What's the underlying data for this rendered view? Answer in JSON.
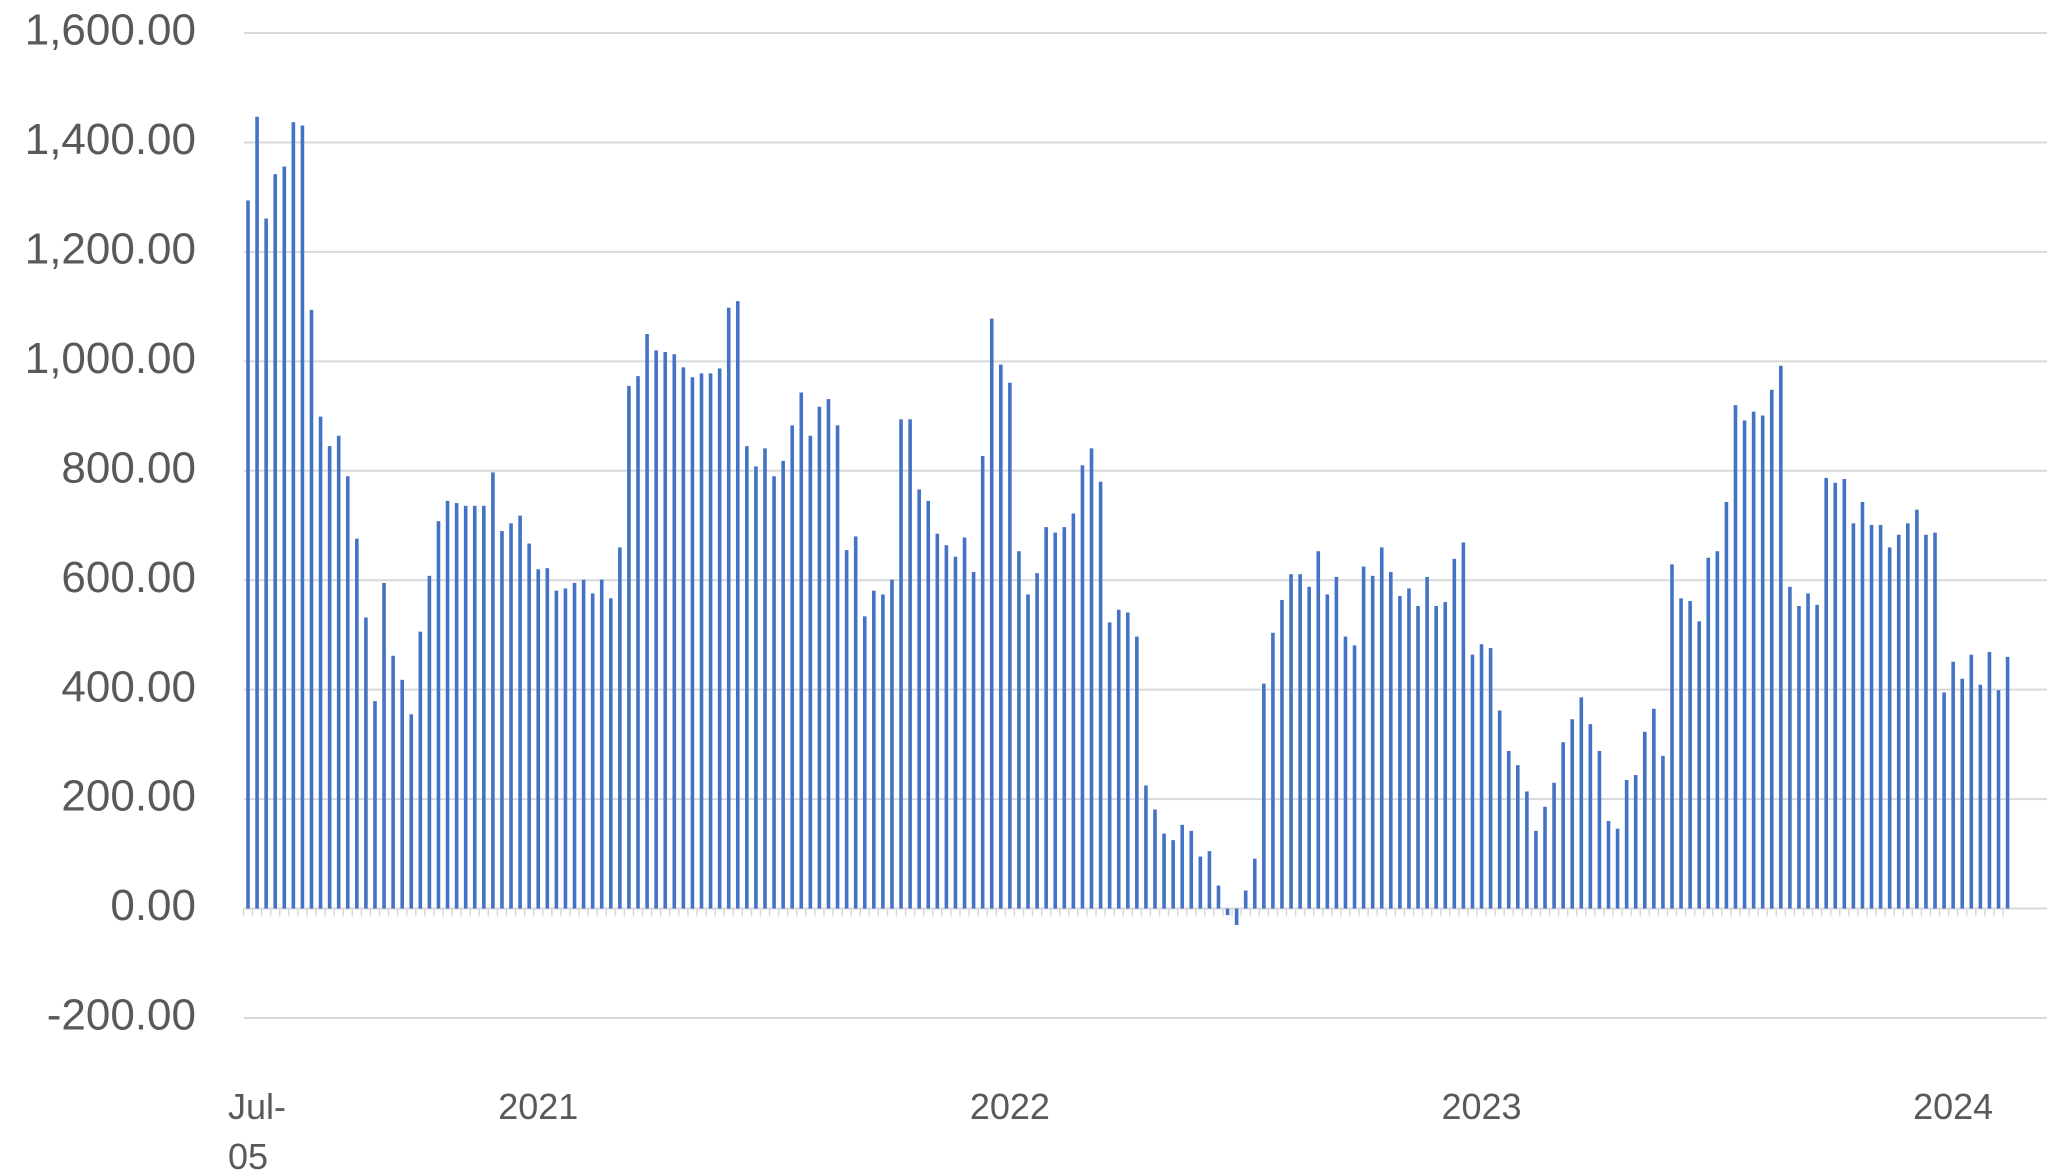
{
  "chart_data": {
    "type": "bar",
    "color": "#4472c4",
    "grid": true,
    "ylim": [
      -200,
      1600
    ],
    "yticks": [
      {
        "value": -200,
        "label": "-200.00"
      },
      {
        "value": 0,
        "label": "0.00"
      },
      {
        "value": 200,
        "label": "200.00"
      },
      {
        "value": 400,
        "label": "400.00"
      },
      {
        "value": 600,
        "label": "600.00"
      },
      {
        "value": 800,
        "label": "800.00"
      },
      {
        "value": 1000,
        "label": "1,000.00"
      },
      {
        "value": 1200,
        "label": "1,200.00"
      },
      {
        "value": 1400,
        "label": "1,400.00"
      },
      {
        "value": 1600,
        "label": "1,600.00"
      }
    ],
    "categories": [
      "Jul-05",
      null,
      null,
      null,
      null,
      null,
      null,
      null,
      null,
      null,
      null,
      null,
      null,
      null,
      null,
      null,
      null,
      null,
      null,
      null,
      null,
      null,
      null,
      null,
      null,
      null,
      null,
      null,
      null,
      null,
      null,
      null,
      "2021",
      null,
      null,
      null,
      null,
      null,
      null,
      null,
      null,
      null,
      null,
      null,
      null,
      null,
      null,
      null,
      null,
      null,
      null,
      null,
      null,
      null,
      null,
      null,
      null,
      null,
      null,
      null,
      null,
      null,
      null,
      null,
      null,
      null,
      null,
      null,
      null,
      null,
      null,
      null,
      null,
      null,
      null,
      null,
      null,
      null,
      null,
      null,
      null,
      null,
      null,
      null,
      "2022",
      null,
      null,
      null,
      null,
      null,
      null,
      null,
      null,
      null,
      null,
      null,
      null,
      null,
      null,
      null,
      null,
      null,
      null,
      null,
      null,
      null,
      null,
      null,
      null,
      null,
      null,
      null,
      null,
      null,
      null,
      null,
      null,
      null,
      null,
      null,
      null,
      null,
      null,
      null,
      null,
      null,
      null,
      null,
      null,
      null,
      null,
      null,
      null,
      null,
      null,
      null,
      "2023",
      null,
      null,
      null,
      null,
      null,
      null,
      null,
      null,
      null,
      null,
      null,
      null,
      null,
      null,
      null,
      null,
      null,
      null,
      null,
      null,
      null,
      null,
      null,
      null,
      null,
      null,
      null,
      null,
      null,
      null,
      null,
      null,
      null,
      null,
      null,
      null,
      null,
      null,
      null,
      null,
      null,
      null,
      null,
      null,
      null,
      null,
      null,
      null,
      null,
      null,
      null,
      "2024",
      null,
      null,
      null,
      null,
      null,
      null
    ],
    "values": [
      1294,
      1447,
      1261,
      1342,
      1356,
      1437,
      1431,
      1094,
      899,
      845,
      864,
      790,
      676,
      532,
      379,
      595,
      462,
      418,
      355,
      506,
      608,
      708,
      745,
      741,
      736,
      736,
      736,
      797,
      690,
      704,
      718,
      667,
      620,
      622,
      581,
      585,
      595,
      601,
      576,
      601,
      567,
      660,
      955,
      973,
      1050,
      1020,
      1017,
      1013,
      989,
      971,
      978,
      978,
      987,
      1098,
      1110,
      845,
      808,
      841,
      790,
      818,
      883,
      943,
      864,
      917,
      931,
      883,
      655,
      680,
      534,
      581,
      574,
      601,
      894,
      894,
      766,
      745,
      685,
      664,
      643,
      678,
      615,
      827,
      1078,
      994,
      961,
      653,
      574,
      613,
      697,
      687,
      697,
      722,
      810,
      841,
      780,
      523,
      546,
      541,
      497,
      225,
      181,
      137,
      125,
      153,
      142,
      95,
      105,
      42,
      -12,
      -30,
      33,
      91,
      411,
      504,
      564,
      611,
      611,
      588,
      653,
      574,
      606,
      497,
      481,
      625,
      608,
      660,
      615,
      571,
      585,
      553,
      606,
      553,
      560,
      639,
      669,
      464,
      483,
      476,
      362,
      288,
      262,
      214,
      142,
      186,
      230,
      304,
      346,
      386,
      337,
      288,
      160,
      146,
      235,
      244,
      323,
      365,
      279,
      629,
      567,
      562,
      525,
      641,
      653,
      743,
      920,
      892,
      908,
      901,
      948,
      992,
      588,
      553,
      576,
      555,
      787,
      778,
      785,
      704,
      743,
      701,
      701,
      660,
      683,
      704,
      729,
      683,
      687,
      395,
      451,
      420,
      464,
      409,
      469,
      399,
      460
    ]
  }
}
